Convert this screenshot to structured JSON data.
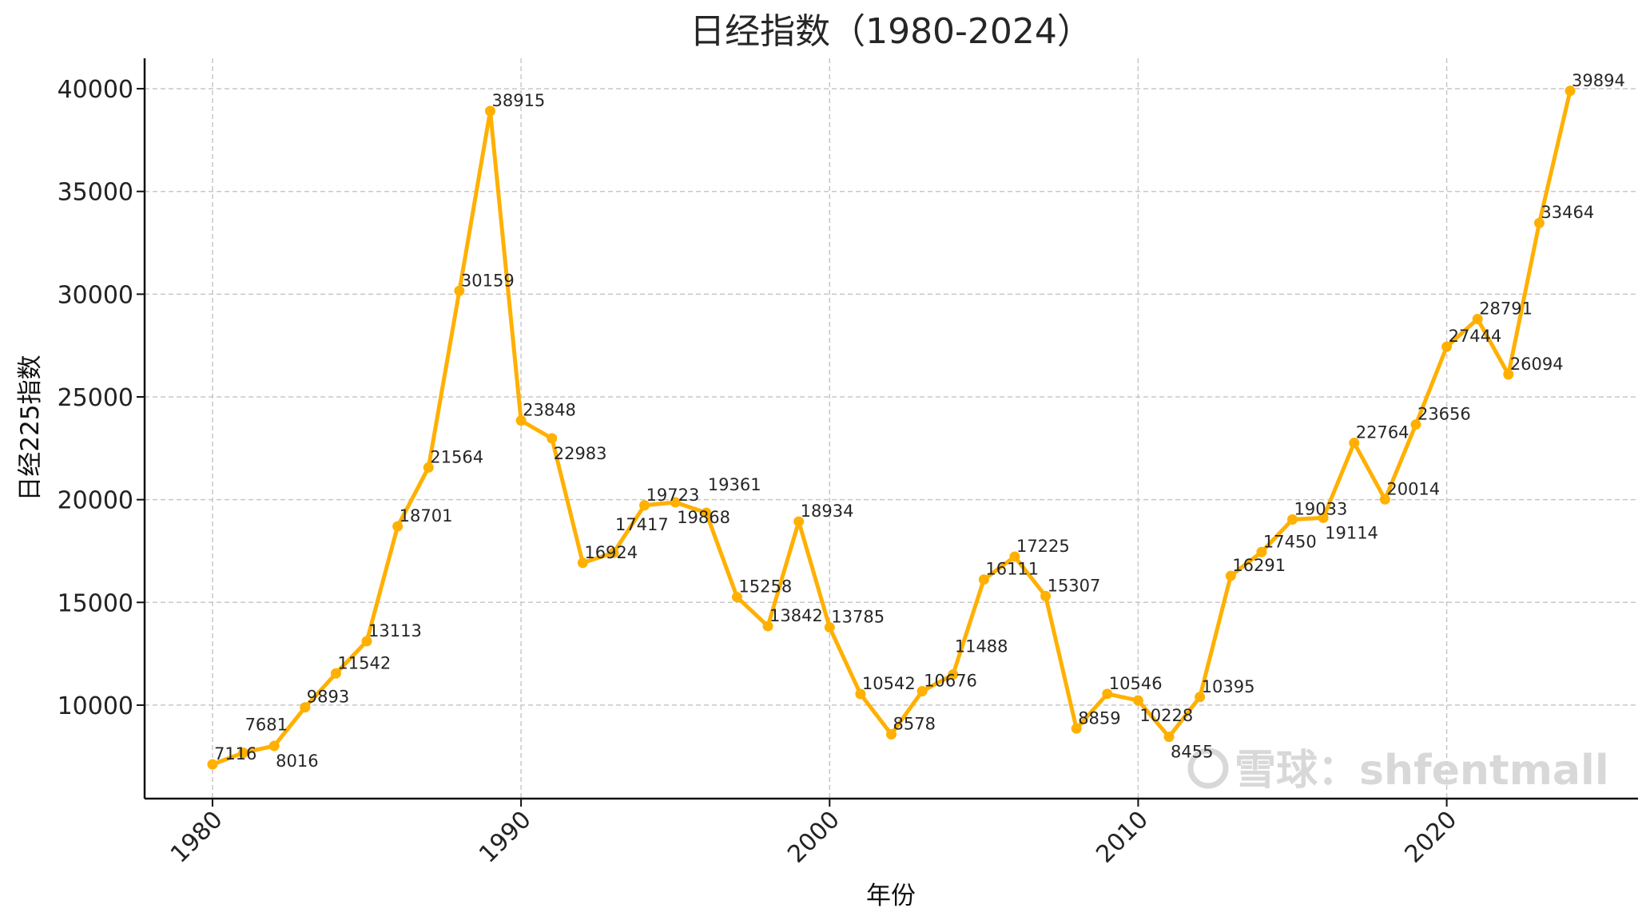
{
  "chart_data": {
    "type": "line",
    "title": "日经指数（1980-2024）",
    "xlabel": "年份",
    "ylabel": "日经225指数",
    "xlim": [
      1977.8,
      2026.2
    ],
    "ylim": [
      5450,
      41480
    ],
    "xticks": [
      1980,
      1990,
      2000,
      2010,
      2020
    ],
    "yticks": [
      10000,
      15000,
      20000,
      25000,
      30000,
      35000,
      40000
    ],
    "grid": true,
    "color": "#FFB000",
    "x": [
      1980,
      1981,
      1982,
      1983,
      1984,
      1985,
      1986,
      1987,
      1988,
      1989,
      1990,
      1991,
      1992,
      1993,
      1994,
      1995,
      1996,
      1997,
      1998,
      1999,
      2000,
      2001,
      2002,
      2003,
      2004,
      2005,
      2006,
      2007,
      2008,
      2009,
      2010,
      2011,
      2012,
      2013,
      2014,
      2015,
      2016,
      2017,
      2018,
      2019,
      2020,
      2021,
      2022,
      2023,
      2024
    ],
    "values": [
      7116,
      7681,
      8016,
      9893,
      11542,
      13113,
      18701,
      21564,
      30159,
      38915,
      23848,
      22983,
      16924,
      17417,
      19723,
      19868,
      19361,
      15258,
      13842,
      18934,
      13785,
      10542,
      8578,
      10676,
      11488,
      16111,
      17225,
      15307,
      8859,
      10546,
      10228,
      8455,
      10395,
      16291,
      17450,
      19033,
      19114,
      22764,
      20014,
      23656,
      27444,
      28791,
      26094,
      33464,
      39894
    ]
  },
  "watermark": "雪球：shfentmall"
}
